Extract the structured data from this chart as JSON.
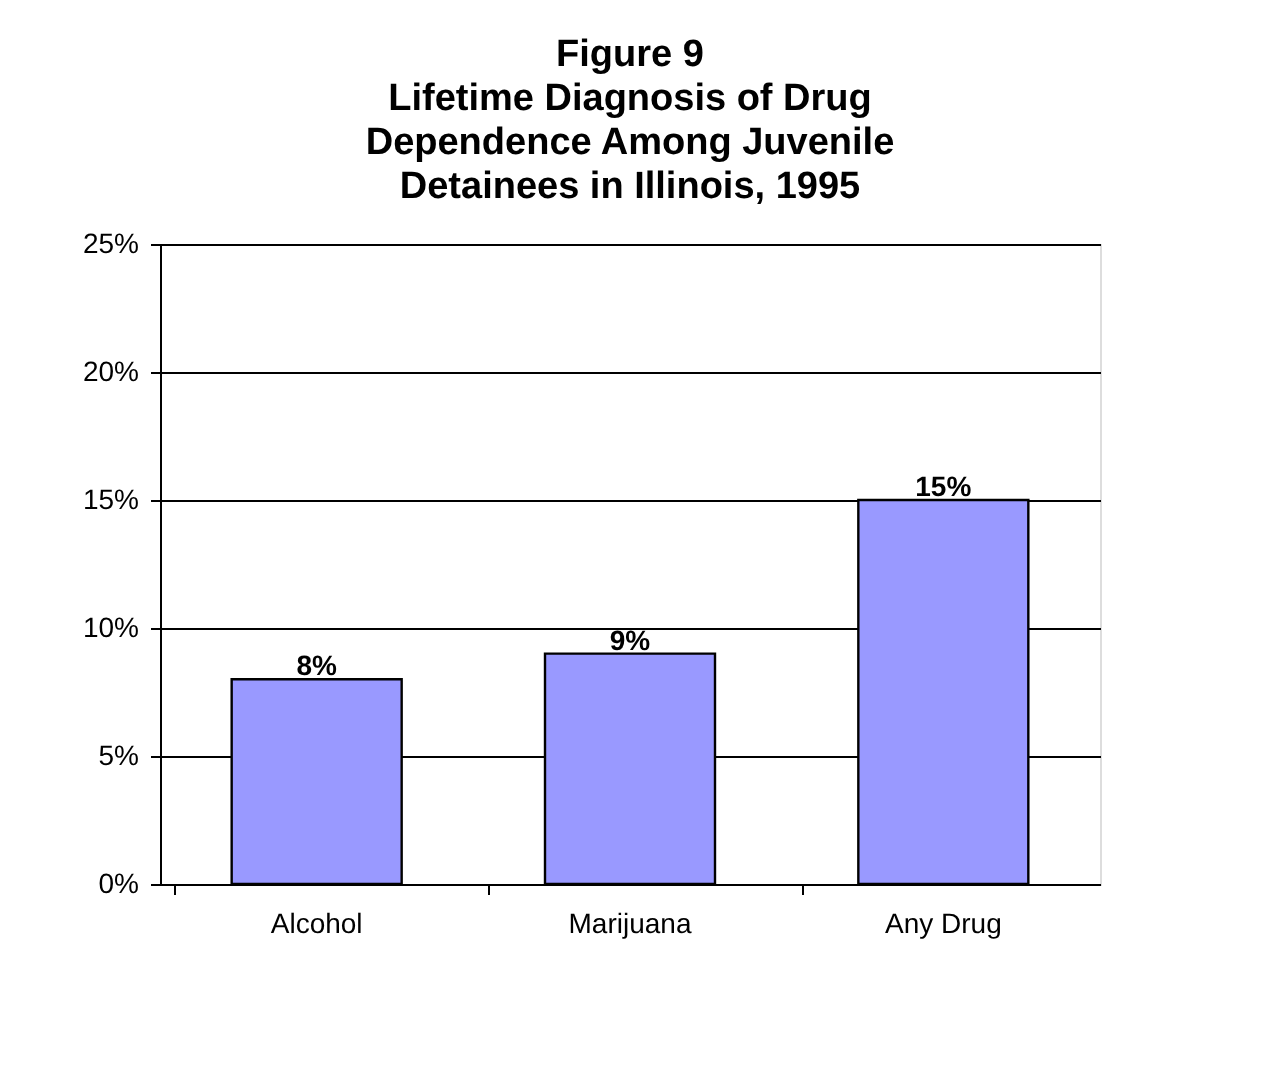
{
  "chart_data": {
    "type": "bar",
    "title": [
      "Figure 9",
      "Lifetime Diagnosis of Drug",
      "Dependence Among Juvenile",
      "Detainees in Illinois, 1995"
    ],
    "categories": [
      "Alcohol",
      "Marijuana",
      "Any Drug"
    ],
    "values": [
      8,
      9,
      15
    ],
    "value_labels": [
      "8%",
      "9%",
      "15%"
    ],
    "color": "#9999ff",
    "ylim": [
      0,
      25
    ],
    "yticks": [
      {
        "value": 0,
        "label": "0%"
      },
      {
        "value": 5,
        "label": "5%"
      },
      {
        "value": 10,
        "label": "10%"
      },
      {
        "value": 15,
        "label": "15%"
      },
      {
        "value": 20,
        "label": "20%"
      },
      {
        "value": 25,
        "label": "25%"
      }
    ],
    "grid": "y"
  }
}
